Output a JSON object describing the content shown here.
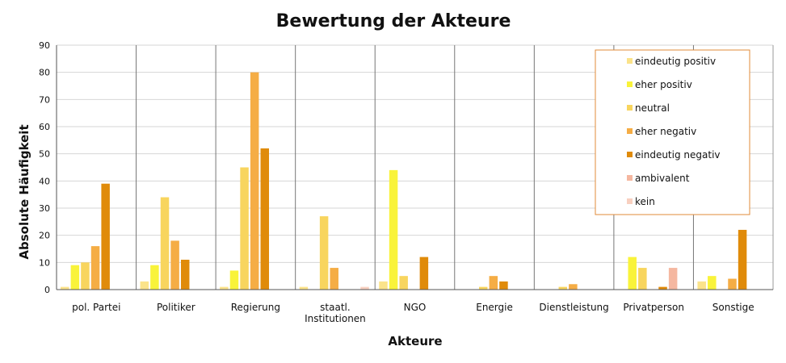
{
  "chart_data": {
    "type": "bar",
    "title": "Bewertung der Akteure",
    "xlabel": "Akteure",
    "ylabel": "Absolute Häufigkeit",
    "ylim": [
      0,
      90
    ],
    "yticks": [
      0,
      10,
      20,
      30,
      40,
      50,
      60,
      70,
      80,
      90
    ],
    "grid": true,
    "legend_position": "top-right",
    "categories": [
      "pol. Partei",
      "Politiker",
      "Regierung",
      "staatl.\nInstitutionen",
      "NGO",
      "Energie",
      "Dienstleistung",
      "Privatperson",
      "Sonstige"
    ],
    "series": [
      {
        "name": "eindeutig positiv",
        "color": "#fbe38a",
        "values": [
          1,
          3,
          1,
          1,
          3,
          0,
          0,
          0,
          3
        ]
      },
      {
        "name": "eher positiv",
        "color": "#f9f33a",
        "values": [
          9,
          9,
          7,
          0,
          44,
          0,
          0,
          12,
          5
        ]
      },
      {
        "name": "neutral",
        "color": "#f8d55e",
        "values": [
          10,
          34,
          45,
          27,
          5,
          1,
          1,
          8,
          0
        ]
      },
      {
        "name": "eher negativ",
        "color": "#f5ad45",
        "values": [
          16,
          18,
          80,
          8,
          0,
          5,
          2,
          0,
          4
        ]
      },
      {
        "name": "eindeutig negativ",
        "color": "#e08b0a",
        "values": [
          39,
          11,
          52,
          0,
          12,
          3,
          0,
          1,
          22
        ]
      },
      {
        "name": "ambivalent",
        "color": "#f5b7a0",
        "values": [
          0,
          0,
          0,
          0,
          0,
          0,
          0,
          8,
          0
        ]
      },
      {
        "name": "kein",
        "color": "#f8d0c0",
        "values": [
          0,
          0,
          0,
          1,
          0,
          0,
          0,
          0,
          0
        ]
      }
    ]
  }
}
